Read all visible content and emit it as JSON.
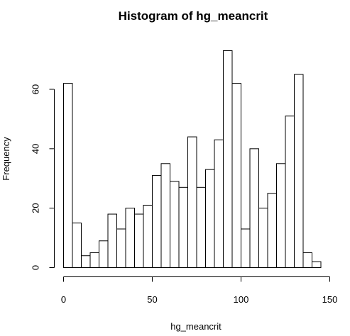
{
  "chart_data": {
    "type": "bar",
    "title": "Histogram of hg_meancrit",
    "xlabel": "hg_meancrit",
    "ylabel": "Frequency",
    "bin_edges": [
      0,
      5,
      10,
      15,
      20,
      25,
      30,
      35,
      40,
      45,
      50,
      55,
      60,
      65,
      70,
      75,
      80,
      85,
      90,
      95,
      100,
      105,
      110,
      115,
      120,
      125,
      130,
      135,
      140,
      145
    ],
    "values": [
      62,
      15,
      4,
      5,
      9,
      18,
      13,
      20,
      18,
      21,
      31,
      35,
      29,
      27,
      44,
      27,
      33,
      43,
      73,
      62,
      13,
      40,
      20,
      25,
      35,
      51,
      65,
      5,
      2
    ],
    "xlim": [
      0,
      150
    ],
    "ylim": [
      0,
      73
    ],
    "x_ticks": [
      0,
      50,
      100,
      150
    ],
    "x_tick_labels": [
      "0",
      "50",
      "100",
      "150"
    ],
    "y_ticks": [
      0,
      20,
      40,
      60
    ],
    "y_tick_labels": [
      "0",
      "20",
      "40",
      "60"
    ],
    "grid": false,
    "colors": {
      "bar_fill": "#ffffff",
      "bar_stroke": "#000000"
    }
  }
}
